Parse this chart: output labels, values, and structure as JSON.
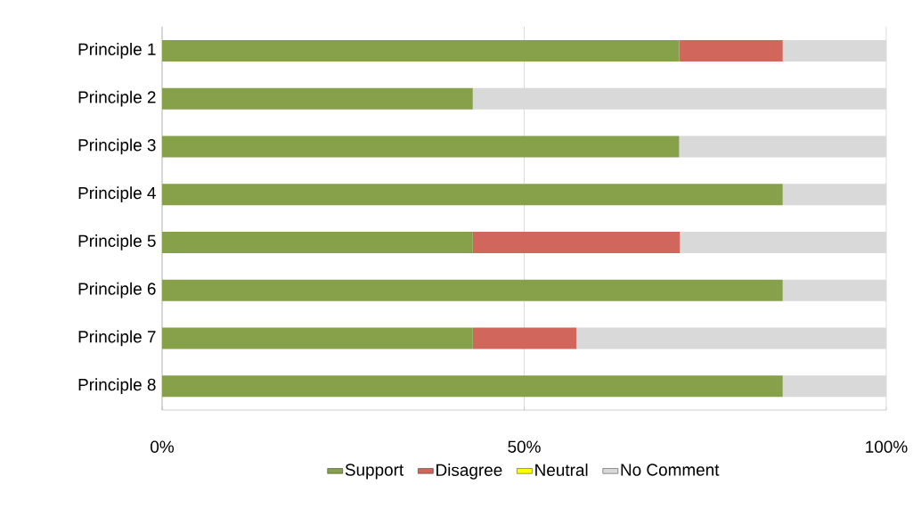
{
  "chart_data": {
    "type": "bar",
    "orientation": "horizontal",
    "stacked": true,
    "categories": [
      "Principle 1",
      "Principle 2",
      "Principle 3",
      "Principle 4",
      "Principle 5",
      "Principle 6",
      "Principle 7",
      "Principle 8"
    ],
    "series": [
      {
        "name": "Support",
        "color": "#86a14a",
        "values": [
          71.4,
          42.9,
          71.4,
          85.7,
          42.9,
          85.7,
          42.9,
          85.7
        ]
      },
      {
        "name": "Disagree",
        "color": "#d0665c",
        "values": [
          14.3,
          0,
          0,
          0,
          28.6,
          0,
          14.3,
          0
        ]
      },
      {
        "name": "Neutral",
        "color": "#ffff00",
        "values": [
          0,
          0,
          0,
          0,
          0,
          0,
          0,
          0
        ]
      },
      {
        "name": "No Comment",
        "color": "#d9d9d9",
        "values": [
          14.3,
          57.1,
          28.6,
          14.3,
          28.6,
          14.3,
          42.8,
          14.3
        ]
      }
    ],
    "xlim": [
      0,
      100
    ],
    "xticks": [
      {
        "value": 0,
        "label": "0%"
      },
      {
        "value": 50,
        "label": "50%"
      },
      {
        "value": 100,
        "label": "100%"
      }
    ],
    "grid": "x",
    "legend": "bottom"
  }
}
